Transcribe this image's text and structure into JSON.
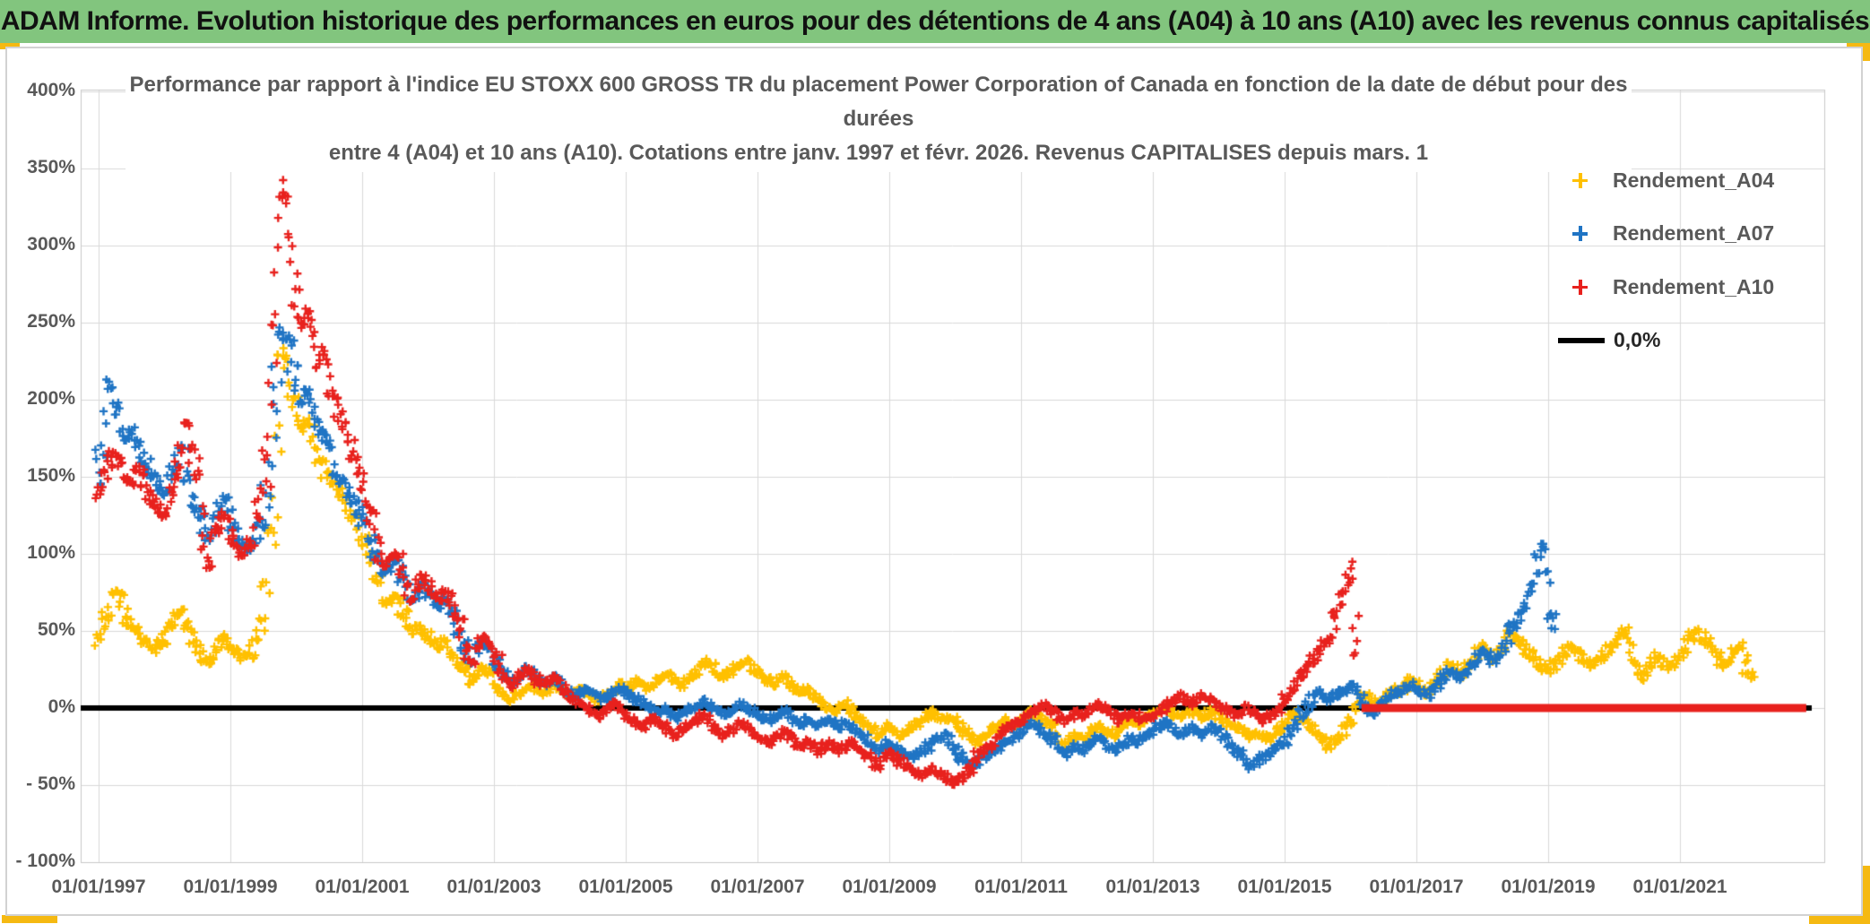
{
  "header": {
    "title": "ADAM Informe. Evolution historique des performances en euros pour des détentions de 4 ans (A04) à 10 ans (A10) avec les revenus connus capitalisés",
    "bg_color": "#82C57E",
    "accent_color": "#F5B912"
  },
  "chart": {
    "title_lines": [
      "Performance par rapport à l'indice EU STOXX 600 GROSS TR  du placement Power Corporation of Canada en fonction de la date de début pour des",
      "durées",
      "entre 4 (A04) et 10 ans (A10). Cotations entre janv. 1997 et févr. 2026. Revenus CAPITALISES depuis mars. 1"
    ],
    "legend": [
      {
        "label": "Rendement_A04",
        "color": "#FFC000",
        "marker": "plus"
      },
      {
        "label": "Rendement_A07",
        "color": "#1F74C4",
        "marker": "plus"
      },
      {
        "label": "Rendement_A10",
        "color": "#E8211D",
        "marker": "plus"
      },
      {
        "label": "0,0%",
        "color": "#000000",
        "marker": "line"
      }
    ],
    "y_axis": {
      "tick_labels": [
        "400%",
        "350%",
        "300%",
        "250%",
        "200%",
        "150%",
        "100%",
        "50%",
        "0%",
        "- 50%",
        "- 100%"
      ],
      "tick_values": [
        400,
        350,
        300,
        250,
        200,
        150,
        100,
        50,
        0,
        -50,
        -100
      ]
    },
    "x_axis": {
      "tick_labels": [
        "01/01/1997",
        "01/01/1999",
        "01/01/2001",
        "01/01/2003",
        "01/01/2005",
        "01/01/2007",
        "01/01/2009",
        "01/01/2011",
        "01/01/2013",
        "01/01/2015",
        "01/01/2017",
        "01/01/2019",
        "01/01/2021"
      ],
      "tick_years": [
        1997,
        1999,
        2001,
        2003,
        2005,
        2007,
        2009,
        2011,
        2013,
        2015,
        2017,
        2019,
        2021
      ]
    }
  },
  "chart_data": {
    "type": "scatter",
    "x_unit": "date de début (mensuel)",
    "x_range": [
      "1997-01",
      "2023-01"
    ],
    "ylim": [
      -100,
      400
    ],
    "y_tick_step": 50,
    "grid": true,
    "legend_position": "inside-top-right",
    "zero_line": {
      "label": "0,0%",
      "color": "#000000",
      "value": 0,
      "from": "1997-01",
      "to": "2023-01"
    },
    "series": [
      {
        "name": "Rendement_A04",
        "color": "#FFC000",
        "start": "1997-01",
        "values": [
          45,
          55,
          65,
          75,
          70,
          60,
          55,
          50,
          45,
          42,
          38,
          42,
          46,
          52,
          58,
          62,
          55,
          48,
          40,
          34,
          30,
          36,
          42,
          46,
          40,
          36,
          33,
          34,
          38,
          48,
          65,
          95,
          150,
          200,
          225,
          210,
          192,
          182,
          186,
          176,
          166,
          156,
          150,
          145,
          138,
          132,
          126,
          120,
          112,
          102,
          90,
          78,
          70,
          68,
          72,
          65,
          58,
          50,
          52,
          50,
          46,
          42,
          40,
          44,
          38,
          32,
          28,
          22,
          16,
          22,
          26,
          24,
          18,
          12,
          8,
          5,
          8,
          10,
          12,
          14,
          12,
          10,
          12,
          15,
          12,
          10,
          8,
          10,
          12,
          10,
          8,
          6,
          8,
          10,
          12,
          15,
          13,
          15,
          18,
          15,
          13,
          15,
          18,
          20,
          22,
          18,
          15,
          18,
          20,
          24,
          28,
          30,
          26,
          22,
          20,
          24,
          26,
          28,
          30,
          26,
          24,
          20,
          18,
          15,
          18,
          20,
          15,
          12,
          10,
          12,
          8,
          5,
          3,
          0,
          -2,
          0,
          3,
          0,
          -5,
          -8,
          -10,
          -14,
          -18,
          -15,
          -12,
          -15,
          -18,
          -16,
          -12,
          -10,
          -8,
          -5,
          -3,
          -6,
          -8,
          -6,
          -8,
          -12,
          -16,
          -20,
          -22,
          -20,
          -18,
          -14,
          -12,
          -8,
          -10,
          -12,
          -8,
          -5,
          -3,
          -5,
          -8,
          -10,
          -14,
          -20,
          -24,
          -20,
          -18,
          -20,
          -18,
          -14,
          -12,
          -14,
          -16,
          -18,
          -14,
          -10,
          -8,
          -10,
          -8,
          -6,
          -4,
          -2,
          0,
          -2,
          -4,
          -6,
          -4,
          -2,
          -4,
          -6,
          -4,
          -2,
          -5,
          -8,
          -10,
          -12,
          -14,
          -16,
          -18,
          -16,
          -18,
          -20,
          -16,
          -14,
          -10,
          -6,
          -3,
          -6,
          -10,
          -14,
          -18,
          -22,
          -25,
          -22,
          -18,
          -14,
          -8,
          -2,
          5,
          8,
          5,
          2,
          5,
          8,
          12,
          10,
          14,
          18,
          15,
          12,
          10,
          14,
          18,
          24,
          28,
          26,
          22,
          26,
          30,
          35,
          40,
          36,
          32,
          36,
          42,
          48,
          45,
          42,
          38,
          34,
          30,
          26,
          24,
          28,
          32,
          36,
          40,
          38,
          34,
          30,
          26,
          30,
          34,
          38,
          42,
          46,
          50,
          38,
          25,
          20,
          25,
          30,
          34,
          30,
          26,
          30,
          34,
          40,
          46,
          50,
          46,
          42,
          38,
          32,
          28,
          32,
          36,
          40,
          30,
          22
        ]
      },
      {
        "name": "Rendement_A07",
        "color": "#1F74C4",
        "start": "1997-01",
        "values": [
          155,
          185,
          210,
          200,
          185,
          175,
          180,
          170,
          165,
          155,
          150,
          145,
          140,
          150,
          160,
          170,
          155,
          140,
          130,
          120,
          110,
          120,
          130,
          135,
          122,
          114,
          107,
          103,
          106,
          115,
          130,
          155,
          190,
          225,
          240,
          228,
          212,
          200,
          205,
          196,
          186,
          176,
          166,
          156,
          150,
          142,
          136,
          130,
          124,
          114,
          104,
          95,
          88,
          90,
          95,
          88,
          78,
          70,
          75,
          80,
          75,
          70,
          65,
          70,
          65,
          55,
          45,
          38,
          30,
          38,
          42,
          40,
          32,
          26,
          20,
          16,
          18,
          22,
          25,
          22,
          18,
          16,
          18,
          20,
          16,
          12,
          10,
          8,
          10,
          12,
          10,
          8,
          6,
          8,
          10,
          12,
          10,
          8,
          6,
          4,
          2,
          0,
          -2,
          0,
          -4,
          -6,
          -4,
          -2,
          0,
          2,
          4,
          2,
          0,
          -2,
          -4,
          -2,
          0,
          2,
          0,
          -2,
          -4,
          -6,
          -8,
          -6,
          -4,
          -2,
          -4,
          -8,
          -10,
          -8,
          -10,
          -12,
          -10,
          -8,
          -10,
          -12,
          -10,
          -12,
          -15,
          -18,
          -20,
          -25,
          -28,
          -25,
          -22,
          -25,
          -28,
          -30,
          -32,
          -30,
          -28,
          -25,
          -22,
          -20,
          -18,
          -20,
          -28,
          -32,
          -36,
          -38,
          -36,
          -33,
          -30,
          -28,
          -25,
          -22,
          -20,
          -18,
          -15,
          -12,
          -10,
          -12,
          -15,
          -18,
          -22,
          -28,
          -30,
          -28,
          -25,
          -28,
          -25,
          -22,
          -20,
          -22,
          -25,
          -28,
          -25,
          -22,
          -20,
          -22,
          -20,
          -18,
          -15,
          -12,
          -10,
          -12,
          -15,
          -18,
          -15,
          -12,
          -15,
          -18,
          -15,
          -12,
          -15,
          -18,
          -22,
          -26,
          -30,
          -34,
          -38,
          -35,
          -32,
          -30,
          -28,
          -25,
          -20,
          -15,
          -10,
          -5,
          0,
          5,
          10,
          8,
          5,
          8,
          10,
          12,
          15,
          10,
          5,
          0,
          -3,
          0,
          3,
          6,
          10,
          8,
          12,
          15,
          12,
          10,
          8,
          12,
          16,
          20,
          24,
          22,
          20,
          24,
          28,
          32,
          36,
          34,
          30,
          35,
          40,
          48,
          55,
          60,
          68,
          78,
          90,
          100,
          75,
          58
        ]
      },
      {
        "name": "Rendement_A10",
        "color": "#E8211D",
        "start": "1997-01",
        "flat_zero_from": "2016-03",
        "flat_zero_to": "2022-12",
        "values": [
          140,
          150,
          160,
          165,
          160,
          150,
          145,
          155,
          150,
          140,
          135,
          130,
          125,
          135,
          150,
          165,
          185,
          170,
          150,
          120,
          95,
          110,
          120,
          125,
          115,
          105,
          100,
          105,
          112,
          125,
          145,
          175,
          230,
          300,
          330,
          290,
          265,
          250,
          255,
          240,
          225,
          230,
          215,
          200,
          190,
          178,
          168,
          158,
          148,
          132,
          118,
          104,
          94,
          96,
          100,
          92,
          80,
          70,
          80,
          85,
          80,
          75,
          70,
          75,
          70,
          60,
          50,
          40,
          30,
          40,
          45,
          42,
          35,
          28,
          20,
          15,
          18,
          22,
          25,
          22,
          18,
          15,
          18,
          20,
          15,
          12,
          8,
          5,
          2,
          0,
          -2,
          -5,
          -3,
          0,
          2,
          0,
          -5,
          -8,
          -10,
          -12,
          -10,
          -8,
          -10,
          -12,
          -15,
          -18,
          -15,
          -12,
          -10,
          -8,
          -5,
          -8,
          -12,
          -15,
          -18,
          -15,
          -12,
          -10,
          -12,
          -15,
          -18,
          -20,
          -22,
          -20,
          -18,
          -15,
          -18,
          -22,
          -25,
          -22,
          -25,
          -28,
          -25,
          -22,
          -25,
          -28,
          -25,
          -22,
          -25,
          -28,
          -30,
          -35,
          -38,
          -35,
          -30,
          -32,
          -35,
          -38,
          -40,
          -42,
          -44,
          -42,
          -40,
          -42,
          -44,
          -46,
          -48,
          -46,
          -42,
          -38,
          -32,
          -28,
          -25,
          -22,
          -18,
          -14,
          -12,
          -10,
          -8,
          -5,
          -3,
          0,
          2,
          0,
          -2,
          -5,
          -8,
          -5,
          -3,
          -5,
          -3,
          0,
          2,
          0,
          -3,
          -5,
          -8,
          -5,
          -3,
          -5,
          -8,
          -6,
          -5,
          -3,
          0,
          3,
          5,
          8,
          5,
          3,
          5,
          8,
          6,
          4,
          2,
          0,
          -3,
          -5,
          -3,
          0,
          -3,
          -5,
          -8,
          -5,
          -3,
          0,
          5,
          10,
          15,
          20,
          25,
          30,
          35,
          40,
          45,
          55,
          65,
          80,
          88,
          50
        ]
      }
    ]
  }
}
